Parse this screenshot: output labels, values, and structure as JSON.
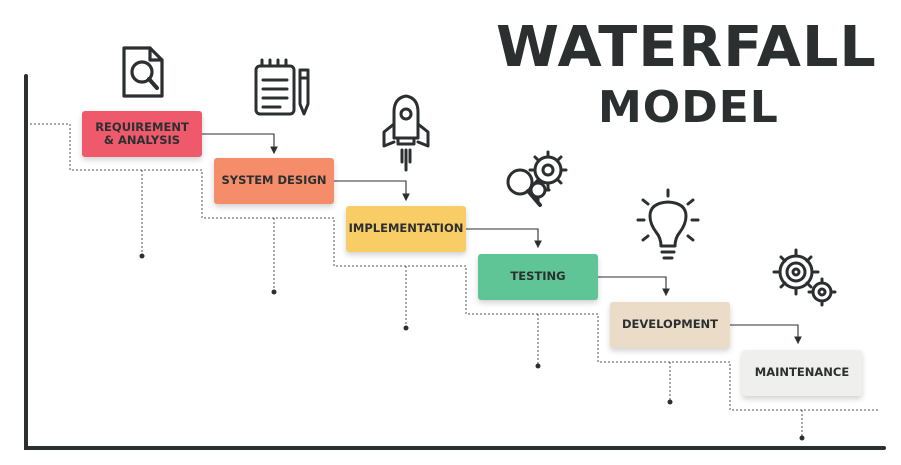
{
  "title": {
    "line1": "WATERFALL",
    "line2": "MODEL"
  },
  "colors": {
    "dark": "#2b2f30",
    "requirement": "#ee5a6b",
    "system_design": "#f58c6a",
    "implementation": "#f8cd65",
    "testing": "#5fc596",
    "development": "#eadcc7",
    "maintenance": "#efefee"
  },
  "steps": [
    {
      "label": "REQUIREMENT\n& ANALYSIS",
      "color": "#ee5a6b",
      "icon": "document-search-icon"
    },
    {
      "label": "SYSTEM DESIGN",
      "color": "#f58c6a",
      "icon": "notepad-pencil-icon"
    },
    {
      "label": "IMPLEMENTATION",
      "color": "#f8cd65",
      "icon": "rocket-icon"
    },
    {
      "label": "TESTING",
      "color": "#5fc596",
      "icon": "magnifier-gears-icon"
    },
    {
      "label": "DEVELOPMENT",
      "color": "#eadcc7",
      "icon": "lightbulb-icon"
    },
    {
      "label": "MAINTENANCE",
      "color": "#efefee",
      "icon": "gears-icon"
    }
  ]
}
